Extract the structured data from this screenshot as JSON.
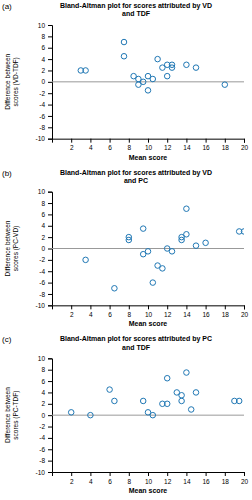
{
  "chart_data": [
    {
      "type": "scatter",
      "title": "Bland-Altman plot for scores attributed by VD\nand TDF",
      "annotation": "(a)",
      "x_label": "Mean score",
      "y_label": "Difference between\nscores (VD-TDF)",
      "x": [
        3,
        3.5,
        7.5,
        7.5,
        8.5,
        9,
        9,
        9.5,
        10,
        10,
        10.5,
        11,
        11.5,
        12,
        12,
        12.5,
        12.5,
        14,
        15,
        18
      ],
      "values": [
        2,
        2,
        7,
        4.5,
        1,
        -0.5,
        0.5,
        0,
        -1.5,
        1,
        0.5,
        4,
        2.5,
        3,
        1,
        2.5,
        3,
        3,
        2.5,
        -0.5
      ],
      "hline": 0,
      "marker": "circle",
      "grid": false,
      "xlim": [
        0,
        20
      ],
      "ylim": [
        -10,
        10
      ],
      "xticks": [
        2,
        4,
        6,
        8,
        10,
        12,
        14,
        16,
        18,
        20
      ],
      "yticks": [
        -10,
        -8,
        -6,
        -4,
        -2,
        0,
        2,
        4,
        6,
        8,
        10
      ]
    },
    {
      "type": "scatter",
      "title": "Bland-Altman plot for scores attributed by VD\nand PC",
      "annotation": "(b)",
      "x_label": "Mean score",
      "y_label": "Difference between\nscores (PC-VD)",
      "x": [
        3.5,
        6.5,
        8,
        8,
        9.5,
        9.5,
        10,
        10.5,
        11,
        11.5,
        12,
        12.5,
        13.5,
        13.5,
        14,
        14,
        15,
        16,
        19.5,
        20
      ],
      "values": [
        -2,
        -7,
        1.5,
        2,
        -1,
        3.5,
        -0.5,
        -6,
        -3,
        -3.5,
        0,
        -0.5,
        2,
        1.5,
        7,
        2.5,
        0.5,
        1,
        3,
        3
      ],
      "hline": 0,
      "marker": "circle",
      "grid": false,
      "xlim": [
        0,
        20
      ],
      "ylim": [
        -10,
        10
      ],
      "xticks": [
        2,
        4,
        6,
        8,
        10,
        12,
        14,
        16,
        18,
        20
      ],
      "yticks": [
        -10,
        -8,
        -6,
        -4,
        -2,
        0,
        2,
        4,
        6,
        8,
        10
      ]
    },
    {
      "type": "scatter",
      "title": "Bland-Altman plot for scores attributed by PC\nand TDF",
      "annotation": "(c)",
      "x_label": "Mean score",
      "y_label": "Difference between\nscores (PC-TDF)",
      "x": [
        2,
        4,
        6,
        6.5,
        9.5,
        10,
        10.5,
        11.5,
        12,
        12,
        13,
        13.5,
        13.5,
        14,
        14.5,
        15,
        19,
        19.5
      ],
      "values": [
        0.5,
        0,
        4.5,
        2.5,
        2.5,
        0.5,
        0,
        2,
        6.5,
        2,
        4,
        2.5,
        3.5,
        7.5,
        1,
        4,
        2.5,
        2.5
      ],
      "hline": 0,
      "marker": "circle",
      "grid": false,
      "xlim": [
        0,
        20
      ],
      "ylim": [
        -10,
        10
      ],
      "xticks": [
        2,
        4,
        6,
        8,
        10,
        12,
        14,
        16,
        18,
        20
      ],
      "yticks": [
        -10,
        -8,
        -6,
        -4,
        -2,
        0,
        2,
        4,
        6,
        8,
        10
      ]
    }
  ]
}
